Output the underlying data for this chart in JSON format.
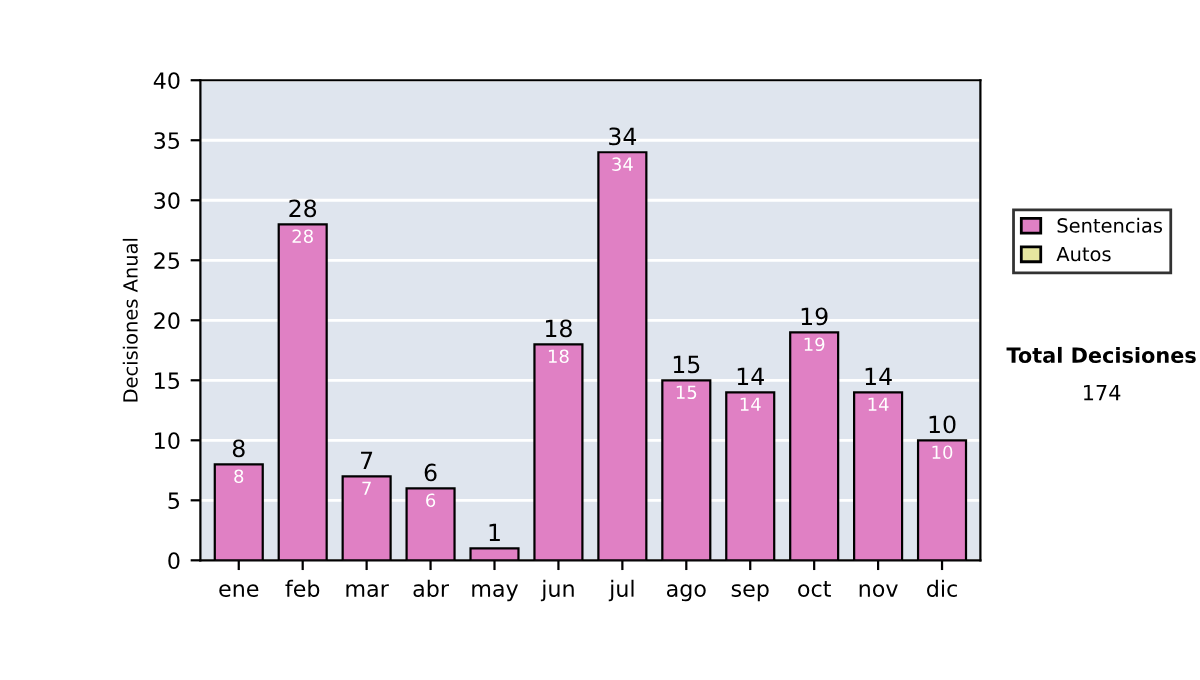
{
  "chart_data": {
    "type": "bar",
    "stacked": true,
    "ylabel": "Decisiones Anual",
    "categories": [
      "ene",
      "feb",
      "mar",
      "abr",
      "may",
      "jun",
      "jul",
      "ago",
      "sep",
      "oct",
      "nov",
      "dic"
    ],
    "series": [
      {
        "name": "Sentencias",
        "color": "#e080c4",
        "values": [
          8,
          28,
          7,
          6,
          1,
          18,
          34,
          15,
          14,
          19,
          14,
          10
        ],
        "value_labels": [
          "8",
          "28",
          "7",
          "6",
          null,
          "18",
          "34",
          "15",
          "14",
          "19",
          "14",
          "10"
        ]
      },
      {
        "name": "Autos",
        "color": "#e6e6a0",
        "values": [
          null,
          null,
          null,
          null,
          null,
          null,
          null,
          null,
          null,
          null,
          null,
          null
        ]
      }
    ],
    "totals": [
      "8",
      "28",
      "7",
      "6",
      "1",
      "18",
      "34",
      "15",
      "14",
      "19",
      "14",
      "10"
    ],
    "ylim": [
      0,
      40
    ],
    "yticks": [
      0,
      5,
      10,
      15,
      20,
      25,
      30,
      35,
      40
    ],
    "grid": "y",
    "legend": "right",
    "annotations": [
      "Total Decisiones",
      "174"
    ]
  }
}
